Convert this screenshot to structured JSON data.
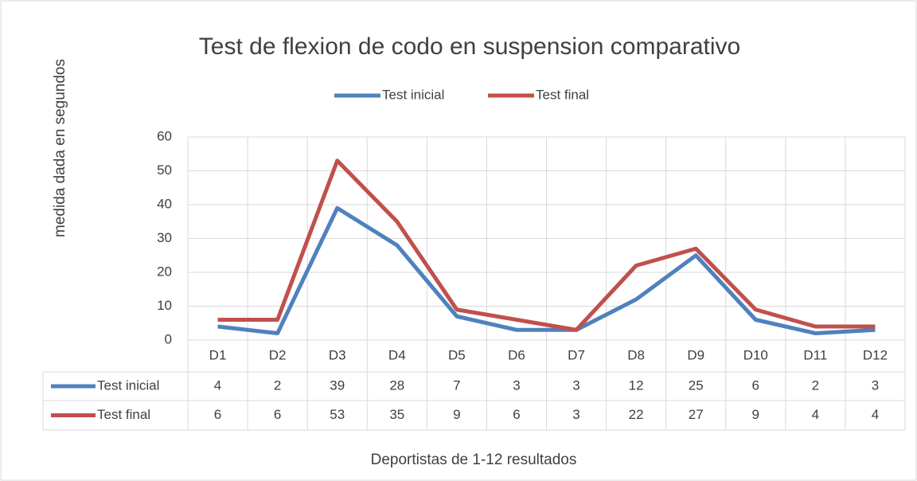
{
  "chart_data": {
    "type": "line",
    "title": "Test de flexion de codo en suspension comparativo",
    "y_label": "medida dada en segundos",
    "x_label": "Deportistas de 1-12 resultados",
    "categories": [
      "D1",
      "D2",
      "D3",
      "D4",
      "D5",
      "D6",
      "D7",
      "D8",
      "D9",
      "D10",
      "D11",
      "D12"
    ],
    "series": [
      {
        "name": "Test inicial",
        "color": "#4f81bd",
        "values": [
          4,
          2,
          39,
          28,
          7,
          3,
          3,
          12,
          25,
          6,
          2,
          3
        ]
      },
      {
        "name": "Test final",
        "color": "#c0504d",
        "values": [
          6,
          6,
          53,
          35,
          9,
          6,
          3,
          22,
          27,
          9,
          4,
          4
        ]
      }
    ],
    "ylim": [
      0,
      60
    ],
    "yticks": [
      0,
      10,
      20,
      30,
      40,
      50,
      60
    ],
    "grid": true,
    "legend": "top",
    "data_table": true
  }
}
